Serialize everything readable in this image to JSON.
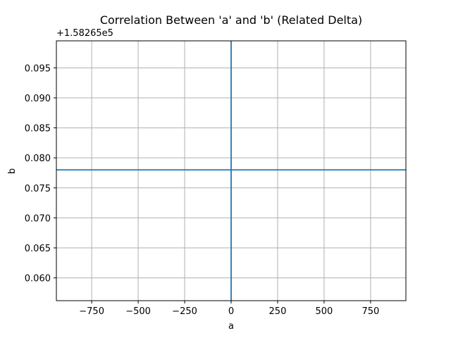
{
  "chart_data": {
    "type": "line",
    "title": "Correlation Between 'a' and 'b' (Related Delta)",
    "xlabel": "a",
    "ylabel": "b",
    "y_offset_label": "+1.58265e5",
    "xlim": [
      -940,
      940
    ],
    "ylim": [
      0.0562,
      0.0995
    ],
    "x_ticks": [
      -750,
      -500,
      -250,
      0,
      250,
      500,
      750
    ],
    "x_tick_labels": [
      "−750",
      "−500",
      "−250",
      "0",
      "250",
      "500",
      "750"
    ],
    "y_ticks": [
      0.06,
      0.065,
      0.07,
      0.075,
      0.08,
      0.085,
      0.09,
      0.095
    ],
    "y_tick_labels": [
      "0.060",
      "0.065",
      "0.070",
      "0.075",
      "0.080",
      "0.085",
      "0.090",
      "0.095"
    ],
    "grid": true,
    "legend": "none",
    "series": [
      {
        "values_x": [
          0,
          0
        ],
        "values_y": [
          0.0562,
          0.0995
        ]
      },
      {
        "values_x": [
          -940,
          940
        ],
        "values_y": [
          0.078,
          0.078
        ]
      }
    ],
    "line_color": "#1f77b4",
    "grid_color": "#b0b0b0"
  }
}
